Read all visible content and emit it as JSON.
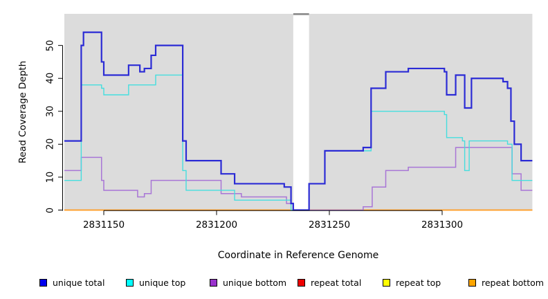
{
  "figure": {
    "background": "#ffffff",
    "panel_background": "#dcdcdc",
    "gap_band_color": "#ffffff",
    "gap_band_cap_color": "#8f8f8f"
  },
  "y_axis": {
    "label": "Read Coverage Depth",
    "ticks": [
      0,
      10,
      20,
      30,
      40,
      50
    ]
  },
  "x_axis": {
    "label": "Coordinate in Reference Genome",
    "ticks": [
      2831150,
      2831200,
      2831250,
      2831300
    ],
    "tick_labels": [
      "2831150",
      "2831200",
      "2831250",
      "2831300"
    ]
  },
  "legend": {
    "items": [
      {
        "label": "unique total",
        "color": "#0000ee"
      },
      {
        "label": "unique top",
        "color": "#00ffff"
      },
      {
        "label": "unique bottom",
        "color": "#9932cc"
      },
      {
        "label": "repeat total",
        "color": "#ee0000"
      },
      {
        "label": "repeat top",
        "color": "#ffff00"
      },
      {
        "label": "repeat bottom",
        "color": "#ffa500"
      }
    ]
  },
  "chart_data": {
    "type": "line",
    "step_mode": "step-after",
    "title": "",
    "xlabel": "Coordinate in Reference Genome",
    "ylabel": "Read Coverage Depth",
    "x_range": [
      2831132.5,
      2831340
    ],
    "y_range": [
      0,
      50
    ],
    "grid": false,
    "legend_position": "bottom",
    "gap_region": {
      "x_start": 2831234,
      "x_end": 2831241
    },
    "series": [
      {
        "name": "repeat total",
        "color": "#e02020",
        "width": 1.4,
        "points": [
          [
            2831132.5,
            0
          ],
          [
            2831340,
            0
          ]
        ]
      },
      {
        "name": "repeat top",
        "color": "#f5e520",
        "width": 1.4,
        "points": [
          [
            2831132.5,
            0
          ],
          [
            2831340,
            0
          ]
        ]
      },
      {
        "name": "repeat bottom",
        "color": "#ff9e2c",
        "width": 1.7,
        "points": [
          [
            2831132.5,
            0
          ],
          [
            2831340,
            0
          ]
        ]
      },
      {
        "name": "unique bottom",
        "color": "#a875d6",
        "width": 1.5,
        "points": [
          [
            2831132.5,
            12
          ],
          [
            2831140,
            16
          ],
          [
            2831149,
            9
          ],
          [
            2831150,
            6
          ],
          [
            2831165,
            4
          ],
          [
            2831168,
            5
          ],
          [
            2831171,
            9
          ],
          [
            2831202,
            5
          ],
          [
            2831211,
            4
          ],
          [
            2831231,
            2
          ],
          [
            2831234,
            0
          ],
          [
            2831265,
            1
          ],
          [
            2831269,
            7
          ],
          [
            2831275,
            12
          ],
          [
            2831285,
            13
          ],
          [
            2831306,
            19
          ],
          [
            2831331,
            11
          ],
          [
            2831335,
            6
          ],
          [
            2831340,
            6
          ]
        ]
      },
      {
        "name": "unique top",
        "color": "#45dede",
        "width": 1.4,
        "points": [
          [
            2831132.5,
            9
          ],
          [
            2831140,
            38
          ],
          [
            2831149,
            37
          ],
          [
            2831150,
            35
          ],
          [
            2831161,
            38
          ],
          [
            2831173,
            41
          ],
          [
            2831185,
            12
          ],
          [
            2831186.5,
            6
          ],
          [
            2831208,
            3
          ],
          [
            2831233,
            0
          ],
          [
            2831241,
            8
          ],
          [
            2831248,
            18
          ],
          [
            2831268.5,
            30
          ],
          [
            2831301,
            29
          ],
          [
            2831302,
            22
          ],
          [
            2831309,
            21
          ],
          [
            2831310,
            12
          ],
          [
            2831312,
            21
          ],
          [
            2831329,
            20
          ],
          [
            2831331,
            9
          ],
          [
            2831340,
            9
          ]
        ]
      },
      {
        "name": "unique total",
        "color": "#2b2bd5",
        "width": 2.2,
        "points": [
          [
            2831132.5,
            21
          ],
          [
            2831140,
            50
          ],
          [
            2831141,
            54
          ],
          [
            2831149,
            45
          ],
          [
            2831150,
            41
          ],
          [
            2831161,
            44
          ],
          [
            2831166,
            42
          ],
          [
            2831168,
            43
          ],
          [
            2831171,
            47
          ],
          [
            2831173,
            50
          ],
          [
            2831185,
            21
          ],
          [
            2831186.5,
            15
          ],
          [
            2831202,
            11
          ],
          [
            2831208,
            8
          ],
          [
            2831230,
            7
          ],
          [
            2831233,
            2
          ],
          [
            2831234,
            0
          ],
          [
            2831241,
            8
          ],
          [
            2831248,
            18
          ],
          [
            2831265,
            19
          ],
          [
            2831268.5,
            37
          ],
          [
            2831275,
            42
          ],
          [
            2831285,
            43
          ],
          [
            2831301,
            42
          ],
          [
            2831302,
            35
          ],
          [
            2831306,
            41
          ],
          [
            2831310,
            31
          ],
          [
            2831313,
            40
          ],
          [
            2831327,
            39
          ],
          [
            2831329,
            37
          ],
          [
            2831330.5,
            27
          ],
          [
            2831332,
            20
          ],
          [
            2831335,
            15
          ],
          [
            2831340,
            15
          ]
        ]
      }
    ]
  }
}
